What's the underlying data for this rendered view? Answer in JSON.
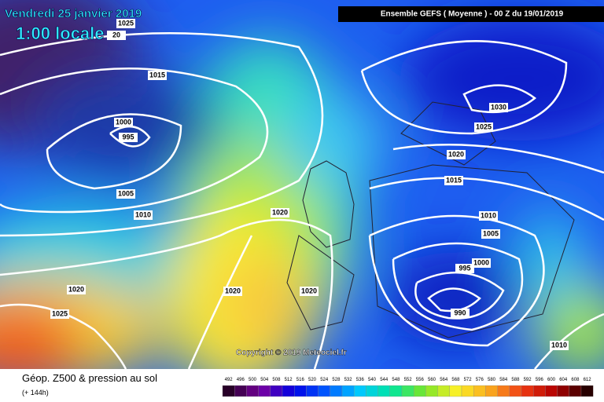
{
  "map": {
    "title": "Vendredi 25 janvier 2019",
    "time": "1:00 locale",
    "header": "Ensemble GEFS  ( Moyenne )  -  00 Z du 19/01/2019",
    "copyright": "Copyright © 2019 Meteociel.fr",
    "isobar_labels": [
      "1025",
      "20",
      "1015",
      "1000",
      "995",
      "1005",
      "1010",
      "1020",
      "1020",
      "1020",
      "1020",
      "1025",
      "1030",
      "1025",
      "1020",
      "1015",
      "1010",
      "1005",
      "1000",
      "995",
      "990",
      "1010"
    ],
    "footer": {
      "title": "Géop. Z500 & pression au sol",
      "lead": "(+ 144h)"
    },
    "scale": {
      "labels": [
        492,
        496,
        500,
        504,
        508,
        512,
        516,
        520,
        524,
        528,
        532,
        536,
        540,
        544,
        548,
        552,
        556,
        560,
        564,
        568,
        572,
        576,
        580,
        584,
        588,
        592,
        596,
        600,
        604,
        608,
        612
      ]
    }
  }
}
